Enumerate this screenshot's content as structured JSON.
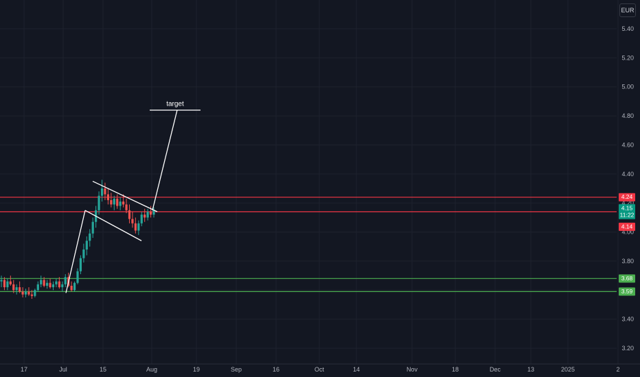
{
  "currency": "EUR",
  "colors": {
    "background": "#131722",
    "grid": "#1e222d",
    "up": "#26a69a",
    "down": "#ef5350",
    "resistance": "#f23645",
    "support": "#4caf50",
    "drawing": "#ffffff",
    "axis_text": "#b2b5be"
  },
  "price_axis_ticks": [
    "5.40",
    "5.20",
    "5.00",
    "4.80",
    "4.60",
    "4.40",
    "4.20",
    "4.00",
    "3.80",
    "3.60",
    "3.40",
    "3.20"
  ],
  "time_axis_ticks": [
    "17",
    "Jul",
    "15",
    "Aug",
    "19",
    "Sep",
    "16",
    "Oct",
    "14",
    "Nov",
    "18",
    "Dec",
    "13",
    "2025",
    "2"
  ],
  "annotation": {
    "label": "target"
  },
  "current_price": {
    "value": "4.15",
    "countdown": "11:22",
    "color": "#089981"
  },
  "chart_data": {
    "type": "candlestick",
    "ylim": [
      3.15,
      5.45
    ],
    "horizontal_levels": [
      {
        "value": 4.24,
        "label": "4.24",
        "kind": "resistance"
      },
      {
        "value": 4.14,
        "label": "4.14",
        "kind": "resistance"
      },
      {
        "value": 3.68,
        "label": "3.68",
        "kind": "support"
      },
      {
        "value": 3.59,
        "label": "3.59",
        "kind": "support"
      }
    ],
    "flag_pattern": {
      "upper_line": [
        [
          4.35,
          4.14
        ]
      ],
      "lower_line": [
        [
          4.14,
          3.94
        ]
      ]
    },
    "target_price": 4.84,
    "candles": [
      [
        3.66,
        3.7,
        3.62,
        3.67
      ],
      [
        3.67,
        3.69,
        3.6,
        3.62
      ],
      [
        3.62,
        3.68,
        3.6,
        3.66
      ],
      [
        3.66,
        3.7,
        3.63,
        3.64
      ],
      [
        3.64,
        3.67,
        3.58,
        3.6
      ],
      [
        3.6,
        3.64,
        3.57,
        3.62
      ],
      [
        3.62,
        3.66,
        3.58,
        3.59
      ],
      [
        3.59,
        3.62,
        3.55,
        3.57
      ],
      [
        3.57,
        3.61,
        3.55,
        3.59
      ],
      [
        3.59,
        3.62,
        3.56,
        3.57
      ],
      [
        3.57,
        3.6,
        3.54,
        3.56
      ],
      [
        3.56,
        3.61,
        3.55,
        3.6
      ],
      [
        3.6,
        3.66,
        3.59,
        3.64
      ],
      [
        3.64,
        3.7,
        3.62,
        3.67
      ],
      [
        3.67,
        3.69,
        3.62,
        3.63
      ],
      [
        3.63,
        3.67,
        3.61,
        3.65
      ],
      [
        3.65,
        3.68,
        3.61,
        3.62
      ],
      [
        3.62,
        3.66,
        3.6,
        3.64
      ],
      [
        3.64,
        3.68,
        3.62,
        3.66
      ],
      [
        3.66,
        3.69,
        3.61,
        3.62
      ],
      [
        3.62,
        3.66,
        3.59,
        3.64
      ],
      [
        3.64,
        3.71,
        3.62,
        3.69
      ],
      [
        3.69,
        3.72,
        3.62,
        3.63
      ],
      [
        3.63,
        3.66,
        3.59,
        3.6
      ],
      [
        3.6,
        3.66,
        3.59,
        3.65
      ],
      [
        3.65,
        3.75,
        3.64,
        3.73
      ],
      [
        3.73,
        3.84,
        3.71,
        3.82
      ],
      [
        3.82,
        3.92,
        3.79,
        3.88
      ],
      [
        3.88,
        3.97,
        3.84,
        3.94
      ],
      [
        3.94,
        4.02,
        3.9,
        3.99
      ],
      [
        3.99,
        4.1,
        3.96,
        4.07
      ],
      [
        4.07,
        4.18,
        4.03,
        4.15
      ],
      [
        4.15,
        4.28,
        4.12,
        4.25
      ],
      [
        4.25,
        4.36,
        4.21,
        4.3
      ],
      [
        4.3,
        4.34,
        4.22,
        4.26
      ],
      [
        4.26,
        4.3,
        4.19,
        4.22
      ],
      [
        4.22,
        4.27,
        4.17,
        4.19
      ],
      [
        4.19,
        4.25,
        4.15,
        4.23
      ],
      [
        4.23,
        4.26,
        4.16,
        4.18
      ],
      [
        4.18,
        4.24,
        4.15,
        4.21
      ],
      [
        4.21,
        4.26,
        4.17,
        4.19
      ],
      [
        4.19,
        4.23,
        4.13,
        4.15
      ],
      [
        4.15,
        4.19,
        4.06,
        4.09
      ],
      [
        4.09,
        4.14,
        4.03,
        4.06
      ],
      [
        4.06,
        4.1,
        3.99,
        4.01
      ],
      [
        4.01,
        4.08,
        3.98,
        4.06
      ],
      [
        4.06,
        4.14,
        4.04,
        4.12
      ],
      [
        4.12,
        4.16,
        4.07,
        4.1
      ],
      [
        4.1,
        4.16,
        4.08,
        4.14
      ],
      [
        4.14,
        4.18,
        4.1,
        4.12
      ],
      [
        4.12,
        4.17,
        4.1,
        4.15
      ]
    ]
  }
}
